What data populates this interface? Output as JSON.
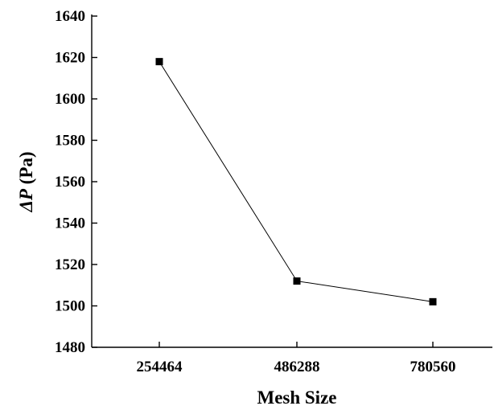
{
  "chart_data": {
    "type": "line",
    "title": "",
    "xlabel": "Mesh Size",
    "ylabel_symbol": "ΔP",
    "ylabel_unit": " (Pa)",
    "categories": [
      "254464",
      "486288",
      "780560"
    ],
    "series": [
      {
        "values": [
          1618,
          1512,
          1502
        ]
      }
    ],
    "ylim": [
      1480,
      1640
    ],
    "yticks": [
      1480,
      1500,
      1520,
      1540,
      1560,
      1580,
      1600,
      1620,
      1640
    ],
    "grid": false,
    "legend": "none",
    "marker": "square",
    "color": "#000000"
  }
}
